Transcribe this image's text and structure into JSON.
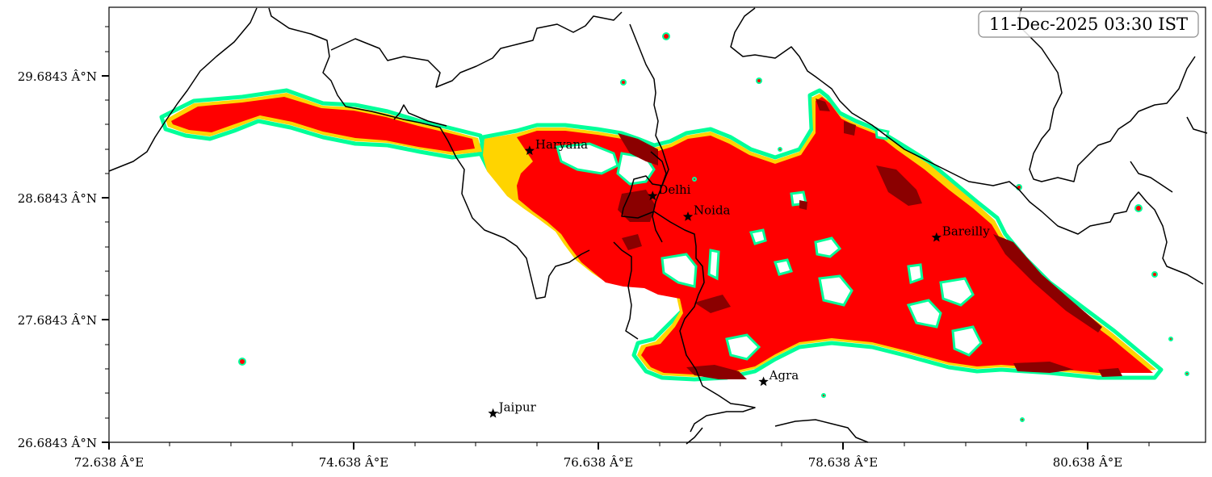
{
  "map": {
    "timestamp": "11-Dec-2025 03:30 IST",
    "x_ticks": [
      "72.638 Â°E",
      "74.638 Â°E",
      "76.638 Â°E",
      "78.638 Â°E",
      "80.638 Â°E"
    ],
    "y_ticks": [
      "26.6843 Â°N",
      "27.6843 Â°N",
      "28.6843 Â°N",
      "29.6843 Â°N"
    ],
    "lon_range": [
      72.638,
      81.638
    ],
    "lat_range": [
      26.6843,
      30.2443
    ],
    "cities": [
      {
        "name": "Haryana",
        "lon": 76.09,
        "lat": 29.07
      },
      {
        "name": "Delhi",
        "lon": 77.1,
        "lat": 28.7
      },
      {
        "name": "Noida",
        "lon": 77.39,
        "lat": 28.53
      },
      {
        "name": "Bareilly",
        "lon": 79.43,
        "lat": 28.36
      },
      {
        "name": "Agra",
        "lon": 78.01,
        "lat": 27.18
      },
      {
        "name": "Jaipur",
        "lon": 75.79,
        "lat": 26.92
      }
    ],
    "colors": {
      "contour_outline": "#00ff99",
      "level_yellow": "#ffd400",
      "level_red": "#ff0000",
      "level_darkred": "#8b0000",
      "border": "#000000"
    }
  }
}
